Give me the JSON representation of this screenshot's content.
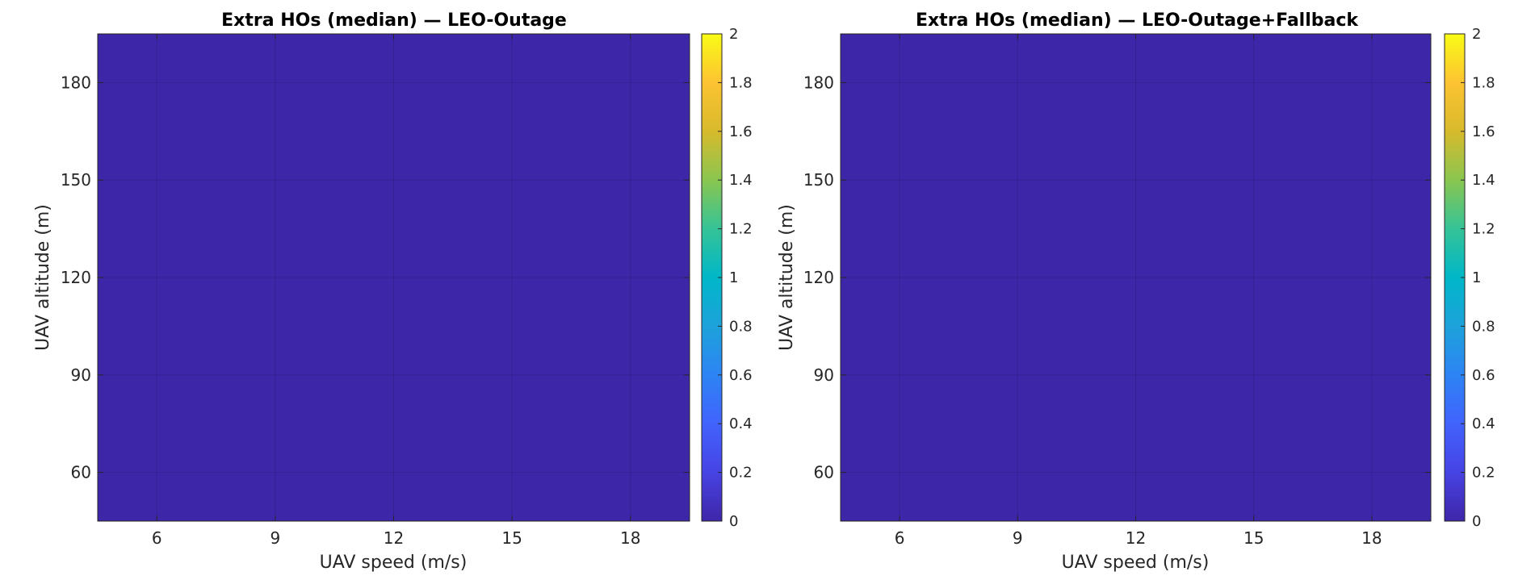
{
  "chart_data": [
    {
      "type": "heatmap",
      "title": "Extra HOs (median) — LEO-Outage",
      "xlabel": "UAV speed (m/s)",
      "ylabel": "UAV altitude (m)",
      "x": [
        6,
        9,
        12,
        15,
        18
      ],
      "y": [
        60,
        90,
        120,
        150,
        180
      ],
      "xlim": [
        4.5,
        19.5
      ],
      "ylim": [
        45,
        195
      ],
      "xticks": [
        6,
        9,
        12,
        15,
        18
      ],
      "yticks": [
        60,
        90,
        120,
        150,
        180
      ],
      "values": [
        [
          0,
          0,
          0,
          0,
          0
        ],
        [
          0,
          0,
          0,
          0,
          0
        ],
        [
          0,
          0,
          0,
          0,
          0
        ],
        [
          0,
          0,
          0,
          0,
          0
        ],
        [
          0,
          0,
          0,
          0,
          0
        ]
      ],
      "clim": [
        0,
        2
      ],
      "colorbar_ticks": [
        "0",
        "0.2",
        "0.4",
        "0.6",
        "0.8",
        "1",
        "1.2",
        "1.4",
        "1.6",
        "1.8",
        "2"
      ],
      "colormap": "parula",
      "grid": true
    },
    {
      "type": "heatmap",
      "title": "Extra HOs (median) — LEO-Outage+Fallback",
      "xlabel": "UAV speed (m/s)",
      "ylabel": "UAV altitude (m)",
      "x": [
        6,
        9,
        12,
        15,
        18
      ],
      "y": [
        60,
        90,
        120,
        150,
        180
      ],
      "xlim": [
        4.5,
        19.5
      ],
      "ylim": [
        45,
        195
      ],
      "xticks": [
        6,
        9,
        12,
        15,
        18
      ],
      "yticks": [
        60,
        90,
        120,
        150,
        180
      ],
      "values": [
        [
          0,
          0,
          0,
          0,
          0
        ],
        [
          0,
          0,
          0,
          0,
          0
        ],
        [
          0,
          0,
          0,
          0,
          0
        ],
        [
          0,
          0,
          0,
          0,
          0
        ],
        [
          0,
          0,
          0,
          0,
          0
        ]
      ],
      "clim": [
        0,
        2
      ],
      "colorbar_ticks": [
        "0",
        "0.2",
        "0.4",
        "0.6",
        "0.8",
        "1",
        "1.2",
        "1.4",
        "1.6",
        "1.8",
        "2"
      ],
      "colormap": "parula",
      "grid": true
    }
  ]
}
